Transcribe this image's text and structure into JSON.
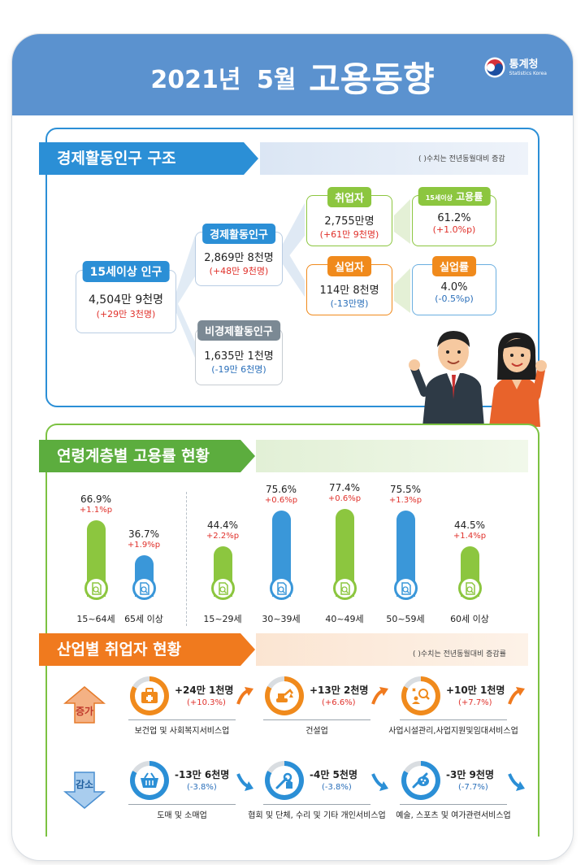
{
  "header": {
    "title_year": "2021년",
    "title_month": "5월",
    "title_main": "고용동향",
    "agency_kr": "통계청",
    "agency_en": "Statistics Korea",
    "color": "#5b92cf"
  },
  "structure": {
    "title": "경제활동인구 구조",
    "note": "( )수치는 전년동월대비 증감",
    "pop15": {
      "label": "15세이상 인구",
      "value": "4,504만 9천명",
      "change": "(+29만 3천명)"
    },
    "econ_active": {
      "label": "경제활동인구",
      "value": "2,869만 8천명",
      "change": "(+48만 9천명)"
    },
    "non_active": {
      "label": "비경제활동인구",
      "value": "1,635만 1천명",
      "change": "(-19만 6천명)"
    },
    "employed": {
      "label": "취업자",
      "value": "2,755만명",
      "change": "(+61만 9천명)"
    },
    "unemployed": {
      "label": "실업자",
      "value": "114만 8천명",
      "change": "(-13만명)"
    },
    "emp_rate": {
      "label_small": "15세이상",
      "label": "고용률",
      "value": "61.2%",
      "change": "(+1.0%p)"
    },
    "unemp_rate": {
      "label": "실업률",
      "value": "4.0%",
      "change": "(-0.5%p)"
    }
  },
  "age": {
    "title": "연령계층별 고용률 현황",
    "groups": [
      {
        "label": "15~64세",
        "pct": "66.9%",
        "chg": "+1.1%p",
        "value": 66.9,
        "color": "#8cc63f"
      },
      {
        "label": "65세 이상",
        "pct": "36.7%",
        "chg": "+1.9%p",
        "value": 36.7,
        "color": "#3a97d9"
      },
      {
        "label": "15~29세",
        "pct": "44.4%",
        "chg": "+2.2%p",
        "value": 44.4,
        "color": "#8cc63f"
      },
      {
        "label": "30~39세",
        "pct": "75.6%",
        "chg": "+0.6%p",
        "value": 75.6,
        "color": "#3a97d9"
      },
      {
        "label": "40~49세",
        "pct": "77.4%",
        "chg": "+0.6%p",
        "value": 77.4,
        "color": "#8cc63f"
      },
      {
        "label": "50~59세",
        "pct": "75.5%",
        "chg": "+1.3%p",
        "value": 75.5,
        "color": "#3a97d9"
      },
      {
        "label": "60세 이상",
        "pct": "44.5%",
        "chg": "+1.4%p",
        "value": 44.5,
        "color": "#8cc63f"
      }
    ]
  },
  "industry": {
    "title": "산업별 취업자 현황",
    "note": "( )수치는 전년동월대비 증감률",
    "increase_label": "증가",
    "decrease_label": "감소",
    "increase": [
      {
        "name": "보건업 및 사회복지서비스업",
        "value": "+24만 1천명",
        "pct": "(+10.3%)",
        "icon": "first-aid-kit-icon"
      },
      {
        "name": "건설업",
        "value": "+13만 2천명",
        "pct": "(+6.6%)",
        "icon": "excavator-icon"
      },
      {
        "name": "사업시설관리,사업지원및임대서비스업",
        "value": "+10만 1천명",
        "pct": "(+7.7%)",
        "icon": "business-support-icon"
      }
    ],
    "decrease": [
      {
        "name": "도매 및 소매업",
        "value": "-13만 6천명",
        "pct": "(-3.8%)",
        "icon": "shopping-basket-icon"
      },
      {
        "name": "협회 및 단체, 수리 및 기타 개인서비스업",
        "value": "-4만 5천명",
        "pct": "(-3.8%)",
        "icon": "repair-tools-icon"
      },
      {
        "name": "예술, 스포츠 및 여가관련서비스업",
        "value": "-3만 9천명",
        "pct": "(-7.7%)",
        "icon": "palette-icon"
      }
    ],
    "colors": {
      "orange": "#f08a1c",
      "blue": "#2b8fd6",
      "up_arrow": "#f07a1e",
      "down_arrow": "#2b8fd6"
    }
  }
}
